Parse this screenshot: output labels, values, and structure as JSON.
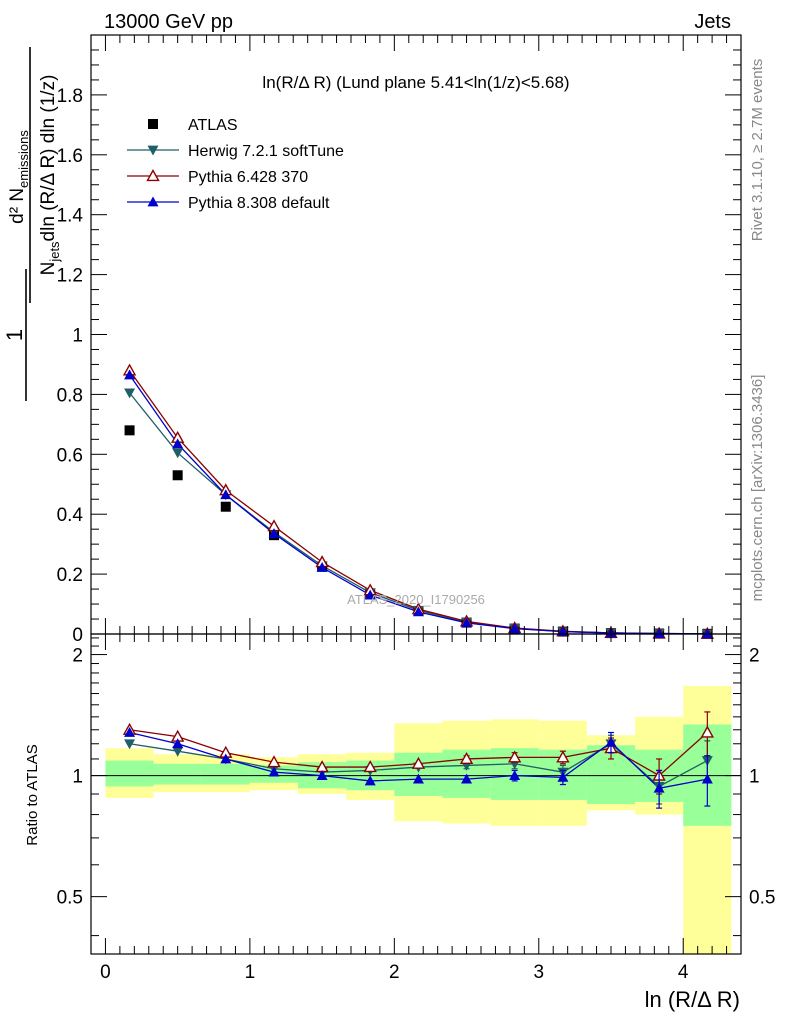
{
  "header": {
    "energy_label": "13000 GeV pp",
    "process_label": "Jets"
  },
  "side_labels": {
    "rivet": "Rivet 3.1.10, ≥ 2.7M events",
    "mcplots": "mcplots.cern.ch [arXiv:1306.3436]"
  },
  "chart_data": [
    {
      "type": "scatter",
      "panel": "main",
      "title": "ln(R/Δ R) (Lund plane 5.41<ln(1/z)<5.68)",
      "watermark": "ATLAS_2020_I1790256",
      "ylabel": "1/N_jets d²N_emissions / dln(R/ΔR) dln(1/z)",
      "ylabel_parts": {
        "frac_one": "1",
        "numerator": "d² N",
        "numerator_sub": "emissions",
        "denominator_n": "N",
        "denominator_sub": "jets",
        "denominator_rest": "dln (R/Δ R) dln (1/z)"
      },
      "xlim": [
        -0.1,
        4.4
      ],
      "ylim": [
        0,
        2.0
      ],
      "y_ticks": [
        0,
        0.2,
        0.4,
        0.6,
        0.8,
        1,
        1.2,
        1.4,
        1.6,
        1.8
      ],
      "y_tick_labels": [
        "0",
        "0.2",
        "0.4",
        "0.6",
        "0.8",
        "1",
        "1.2",
        "1.4",
        "1.6",
        "1.8"
      ],
      "x": [
        0.167,
        0.5,
        0.833,
        1.167,
        1.5,
        1.833,
        2.167,
        2.5,
        2.833,
        3.167,
        3.5,
        3.833,
        4.167
      ],
      "series": [
        {
          "name": "ATLAS",
          "marker": "square",
          "color": "#000000",
          "values": [
            0.68,
            0.53,
            0.425,
            0.33,
            0.225,
            0.135,
            0.077,
            0.038,
            0.018,
            0.008,
            0.003,
            0.0015,
            0.0006
          ]
        },
        {
          "name": "Herwig 7.2.1 softTune",
          "marker": "triangle-down",
          "color": "#1f5f66",
          "values": [
            0.805,
            0.605,
            0.465,
            0.34,
            0.228,
            0.138,
            0.079,
            0.04,
            0.019,
            0.008,
            0.0035,
            0.0014,
            0.0006
          ]
        },
        {
          "name": "Pythia 6.428 370",
          "marker": "triangle-up-open",
          "color": "#8b0000",
          "values": [
            0.88,
            0.655,
            0.48,
            0.36,
            0.24,
            0.146,
            0.083,
            0.042,
            0.02,
            0.009,
            0.0035,
            0.0015,
            0.0008
          ]
        },
        {
          "name": "Pythia 8.308 default",
          "marker": "triangle-up",
          "color": "#0000cc",
          "values": [
            0.865,
            0.635,
            0.465,
            0.335,
            0.222,
            0.13,
            0.074,
            0.037,
            0.018,
            0.008,
            0.0036,
            0.0014,
            0.0006
          ]
        }
      ]
    },
    {
      "type": "scatter",
      "panel": "ratio",
      "ylabel": "Ratio to ATLAS",
      "xlabel": "ln (R/Δ R)",
      "xlim": [
        -0.1,
        4.4
      ],
      "ylim": [
        0.36,
        2.25
      ],
      "y_ticks": [
        0.5,
        1,
        2
      ],
      "y_tick_labels": [
        "0.5",
        "1",
        "2"
      ],
      "x_ticks": [
        0,
        1,
        2,
        3,
        4
      ],
      "x_tick_labels": [
        "0",
        "1",
        "2",
        "3",
        "4"
      ],
      "bin_edges": [
        0,
        0.333,
        0.667,
        1.0,
        1.333,
        1.667,
        2.0,
        2.333,
        2.667,
        3.0,
        3.333,
        3.667,
        4.0,
        4.333
      ],
      "band_inner": [
        [
          0.94,
          1.09
        ],
        [
          0.95,
          1.07
        ],
        [
          0.95,
          1.07
        ],
        [
          0.96,
          1.06
        ],
        [
          0.93,
          1.08
        ],
        [
          0.92,
          1.09
        ],
        [
          0.89,
          1.14
        ],
        [
          0.88,
          1.16
        ],
        [
          0.87,
          1.17
        ],
        [
          0.87,
          1.16
        ],
        [
          0.85,
          1.19
        ],
        [
          0.86,
          1.16
        ],
        [
          0.75,
          1.34
        ]
      ],
      "band_outer": [
        [
          0.88,
          1.17
        ],
        [
          0.91,
          1.13
        ],
        [
          0.91,
          1.13
        ],
        [
          0.92,
          1.11
        ],
        [
          0.9,
          1.13
        ],
        [
          0.87,
          1.14
        ],
        [
          0.77,
          1.35
        ],
        [
          0.76,
          1.37
        ],
        [
          0.75,
          1.38
        ],
        [
          0.75,
          1.37
        ],
        [
          0.82,
          1.26
        ],
        [
          0.8,
          1.4
        ],
        [
          0.35,
          1.67
        ]
      ],
      "series": [
        {
          "name": "Herwig 7.2.1 softTune",
          "color": "#1f5f66",
          "marker": "triangle-down",
          "values": [
            1.2,
            1.15,
            1.1,
            1.04,
            1.02,
            1.03,
            1.05,
            1.06,
            1.07,
            1.02,
            1.2,
            0.94,
            1.09
          ],
          "errors": [
            0.01,
            0.01,
            0.01,
            0.01,
            0.01,
            0.01,
            0.01,
            0.02,
            0.03,
            0.04,
            0.06,
            0.09,
            0.13
          ]
        },
        {
          "name": "Pythia 6.428 370",
          "color": "#8b0000",
          "marker": "triangle-up-open",
          "values": [
            1.3,
            1.25,
            1.14,
            1.08,
            1.05,
            1.05,
            1.07,
            1.1,
            1.11,
            1.11,
            1.17,
            1.0,
            1.28
          ],
          "errors": [
            0.01,
            0.01,
            0.01,
            0.01,
            0.01,
            0.01,
            0.01,
            0.02,
            0.03,
            0.04,
            0.07,
            0.1,
            0.16
          ]
        },
        {
          "name": "Pythia 8.308 default",
          "color": "#0000cc",
          "marker": "triangle-up",
          "values": [
            1.28,
            1.2,
            1.1,
            1.02,
            1.0,
            0.97,
            0.98,
            0.98,
            1.0,
            0.99,
            1.21,
            0.93,
            0.98
          ],
          "errors": [
            0.01,
            0.01,
            0.01,
            0.01,
            0.01,
            0.01,
            0.01,
            0.02,
            0.03,
            0.04,
            0.07,
            0.1,
            0.14
          ]
        }
      ]
    }
  ],
  "colors": {
    "band_inner": "#99ff99",
    "band_outer": "#ffff99",
    "axis": "#000000",
    "side_text": "#888888"
  }
}
